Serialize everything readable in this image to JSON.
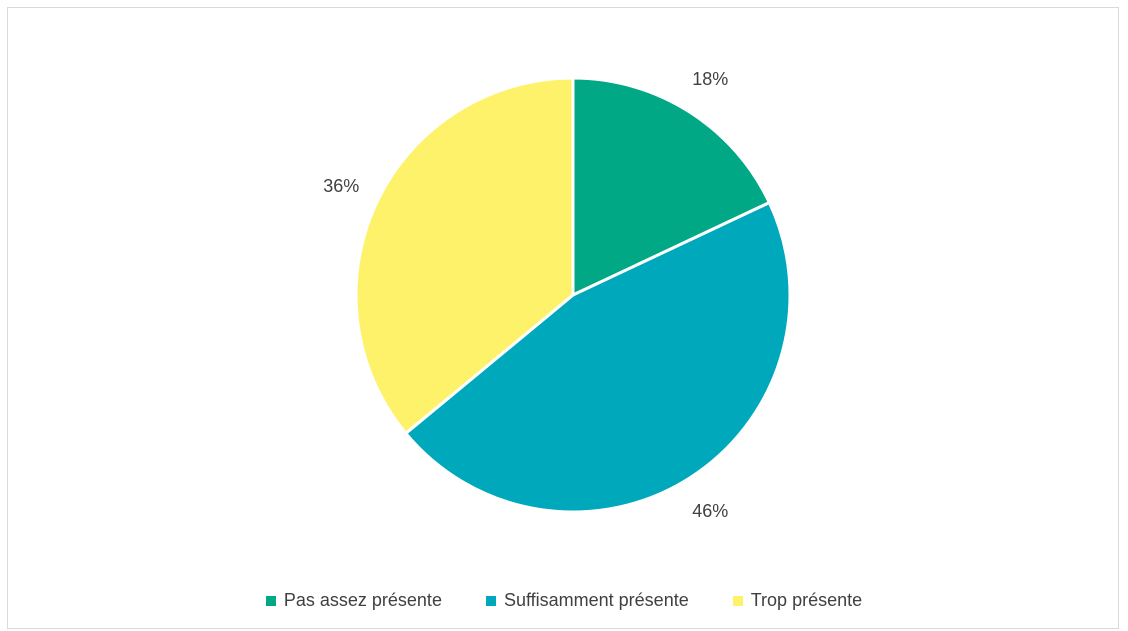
{
  "chart_data": {
    "type": "pie",
    "categories": [
      "Pas assez présente",
      "Suffisamment présente",
      "Trop présente"
    ],
    "values": [
      18,
      46,
      36
    ],
    "labels": [
      "18%",
      "46%",
      "36%"
    ],
    "colors": [
      "#00a886",
      "#00a8bb",
      "#fff26b"
    ],
    "legend_position": "bottom",
    "start_angle": "top",
    "direction": "clockwise"
  }
}
